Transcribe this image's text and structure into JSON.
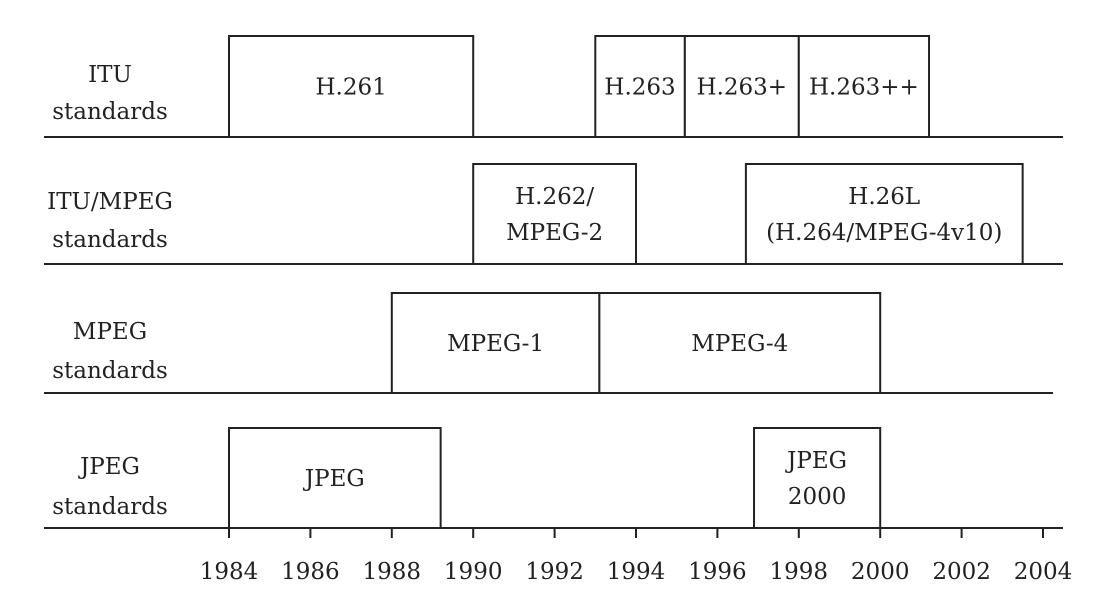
{
  "rows": [
    {
      "label_lines": [
        "ITU",
        "standards"
      ],
      "items": [
        {
          "lines": [
            "H.261"
          ],
          "start": 1984,
          "end": 1990
        },
        {
          "lines": [
            "H.263"
          ],
          "start": 1993,
          "end": 1995.2
        },
        {
          "lines": [
            "H.263+"
          ],
          "start": 1995.2,
          "end": 1998
        },
        {
          "lines": [
            "H.263++"
          ],
          "start": 1998,
          "end": 2001.2
        }
      ]
    },
    {
      "label_lines": [
        "ITU/MPEG",
        "standards"
      ],
      "items": [
        {
          "lines": [
            "H.262/",
            "MPEG-2"
          ],
          "start": 1990,
          "end": 1994
        },
        {
          "lines": [
            "H.26L",
            "(H.264/MPEG-4v10)"
          ],
          "start": 1996.7,
          "end": 2003.5
        }
      ]
    },
    {
      "label_lines": [
        "MPEG",
        "standards"
      ],
      "items": [
        {
          "lines": [
            "MPEG-1"
          ],
          "start": 1988,
          "end": 1993.1
        },
        {
          "lines": [
            "MPEG-4"
          ],
          "start": 1993.1,
          "end": 2000
        }
      ]
    },
    {
      "label_lines": [
        "JPEG",
        "standards"
      ],
      "items": [
        {
          "lines": [
            "JPEG"
          ],
          "start": 1984,
          "end": 1989.2
        },
        {
          "lines": [
            "JPEG",
            "2000"
          ],
          "start": 1996.9,
          "end": 2000
        }
      ]
    }
  ],
  "axis": {
    "ticks": [
      1984,
      1986,
      1988,
      1990,
      1992,
      1994,
      1996,
      1998,
      2000,
      2002,
      2004
    ],
    "range": [
      1984,
      2004
    ]
  }
}
